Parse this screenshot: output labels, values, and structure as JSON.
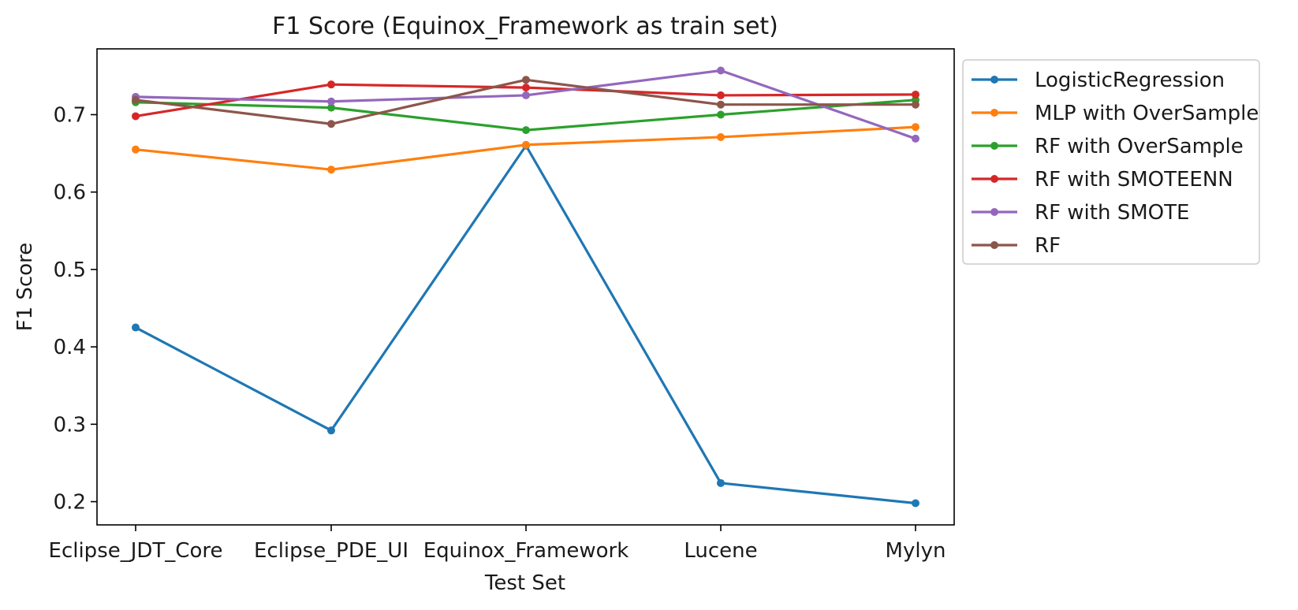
{
  "chart_data": {
    "type": "line",
    "title": "F1 Score (Equinox_Framework as train set)",
    "xlabel": "Test Set",
    "ylabel": "F1 Score",
    "categories": [
      "Eclipse_JDT_Core",
      "Eclipse_PDE_UI",
      "Equinox_Framework",
      "Lucene",
      "Mylyn"
    ],
    "ylim": [
      0.17,
      0.785
    ],
    "yticks": [
      0.2,
      0.3,
      0.4,
      0.5,
      0.6,
      0.7
    ],
    "ytick_labels": [
      "0.2",
      "0.3",
      "0.4",
      "0.5",
      "0.6",
      "0.7"
    ],
    "grid": false,
    "legend_position": "outside-upper-right",
    "series": [
      {
        "name": "LogisticRegression",
        "color": "#1f77b4",
        "values": [
          0.425,
          0.292,
          0.66,
          0.224,
          0.198
        ]
      },
      {
        "name": "MLP with OverSample",
        "color": "#ff7f0e",
        "values": [
          0.655,
          0.629,
          0.661,
          0.671,
          0.684
        ]
      },
      {
        "name": "RF with OverSample",
        "color": "#2ca02c",
        "values": [
          0.716,
          0.709,
          0.68,
          0.7,
          0.719
        ]
      },
      {
        "name": "RF with SMOTEENN",
        "color": "#d62728",
        "values": [
          0.698,
          0.739,
          0.735,
          0.725,
          0.726
        ]
      },
      {
        "name": "RF with SMOTE",
        "color": "#9467bd",
        "values": [
          0.723,
          0.717,
          0.725,
          0.757,
          0.669
        ]
      },
      {
        "name": "RF",
        "color": "#8c564b",
        "values": [
          0.719,
          0.688,
          0.745,
          0.713,
          0.713
        ]
      }
    ]
  }
}
